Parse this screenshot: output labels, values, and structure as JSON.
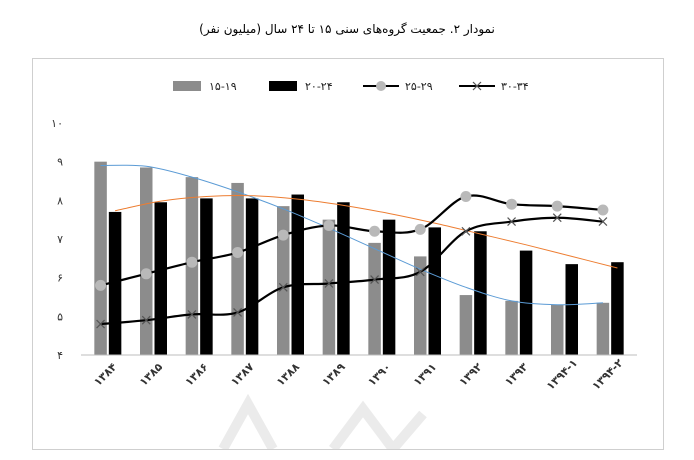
{
  "title": "نمودار ۲. جمعیت گروه‌های سنی ۱۵ تا ۲۴ سال (میلیون نفر)",
  "colors": {
    "bar1": "#8c8c8c",
    "bar2": "#000000",
    "line1": "#000000",
    "line1_marker": "#b9b9b9",
    "line2": "#000000",
    "trend_bar1": "#5b9bd5",
    "trend_bar2": "#ed7d31"
  },
  "chart_data": {
    "type": "bar",
    "categories": [
      "۱۳۸۴",
      "۱۳۸۵",
      "۱۳۸۶",
      "۱۳۸۷",
      "۱۳۸۸",
      "۱۳۸۹",
      "۱۳۹۰",
      "۱۳۹۱",
      "۱۳۹۲",
      "۱۳۹۳",
      "۱۳۹۴-۱",
      "۱۳۹۴-۲"
    ],
    "yticks": [
      "۴",
      "۵",
      "۶",
      "۷",
      "۸",
      "۹",
      "۱۰"
    ],
    "ylim": [
      4,
      10
    ],
    "grid": false,
    "legend_position": "top",
    "series": [
      {
        "name": "۱۵-۱۹",
        "kind": "bar",
        "values": [
          9.0,
          8.85,
          8.6,
          8.45,
          7.85,
          7.5,
          6.9,
          6.55,
          5.55,
          5.4,
          5.3,
          5.35
        ]
      },
      {
        "name": "۲۰-۲۴",
        "kind": "bar",
        "values": [
          7.7,
          7.95,
          8.05,
          8.05,
          8.15,
          7.95,
          7.5,
          7.3,
          7.2,
          6.7,
          6.35,
          6.4
        ]
      },
      {
        "name": "۲۵-۲۹",
        "kind": "line",
        "marker": "circle",
        "values": [
          5.8,
          6.1,
          6.4,
          6.65,
          7.1,
          7.35,
          7.2,
          7.25,
          8.1,
          7.9,
          7.85,
          7.75
        ]
      },
      {
        "name": "۳۰-۳۴",
        "kind": "line",
        "marker": "x",
        "values": [
          4.8,
          4.9,
          5.05,
          5.1,
          5.75,
          5.85,
          5.95,
          6.15,
          7.2,
          7.45,
          7.55,
          7.45
        ]
      }
    ],
    "trendlines": [
      {
        "of": "۱۵-۱۹",
        "values": [
          8.9,
          8.88,
          8.6,
          8.22,
          7.78,
          7.28,
          6.75,
          6.22,
          5.75,
          5.4,
          5.3,
          5.35
        ]
      },
      {
        "of": "۲۰-۲۴",
        "values": [
          7.73,
          7.98,
          8.1,
          8.12,
          8.03,
          7.87,
          7.66,
          7.41,
          7.13,
          6.85,
          6.55,
          6.25
        ]
      }
    ]
  }
}
